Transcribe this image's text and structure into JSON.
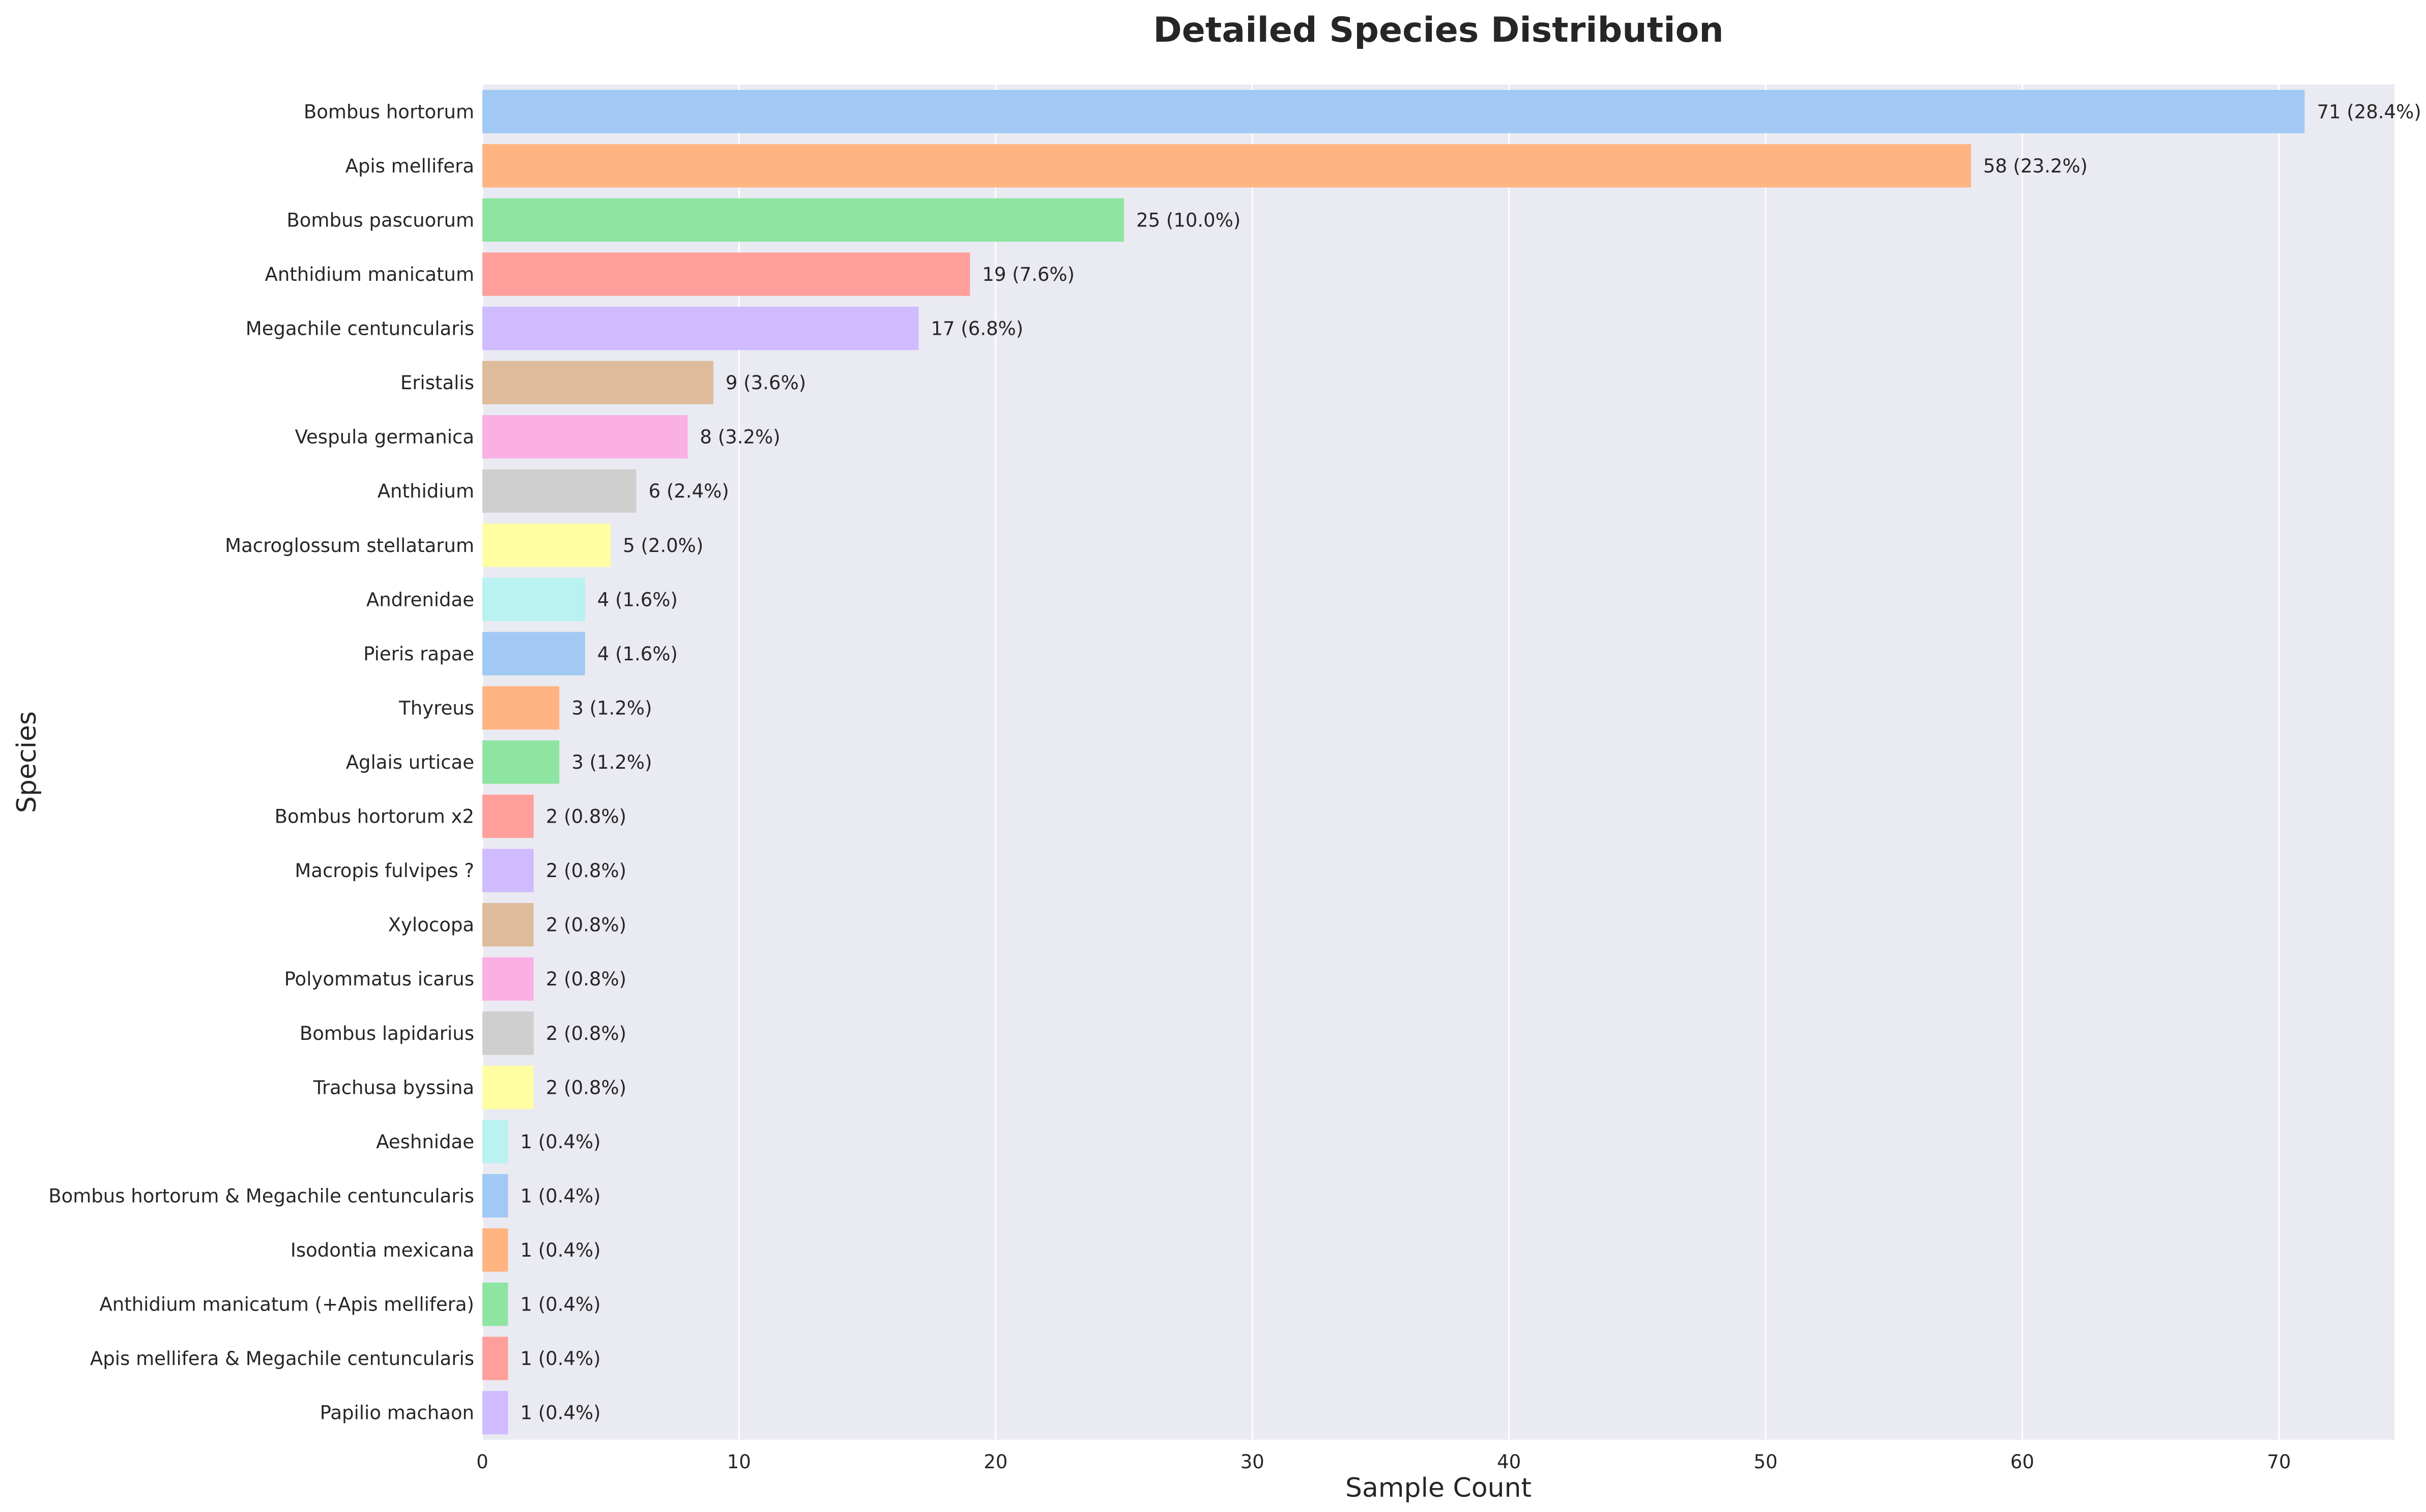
{
  "chart_data": {
    "type": "bar",
    "orientation": "horizontal",
    "title": "Detailed Species Distribution",
    "xlabel": "Sample Count",
    "ylabel": "Species",
    "xlim": [
      0,
      74.5
    ],
    "xticks": [
      0,
      10,
      20,
      30,
      40,
      50,
      60,
      70
    ],
    "grid": true,
    "categories": [
      "Bombus hortorum",
      "Apis mellifera",
      "Bombus pascuorum",
      "Anthidium manicatum",
      "Megachile centuncularis",
      "Eristalis",
      "Vespula germanica",
      "Anthidium",
      "Macroglossum stellatarum",
      "Andrenidae",
      "Pieris rapae",
      "Thyreus",
      "Aglais urticae",
      "Bombus hortorum x2",
      "Macropis fulvipes ?",
      "Xylocopa",
      "Polyommatus icarus",
      "Bombus lapidarius",
      "Trachusa byssina",
      "Aeshnidae",
      "Bombus hortorum & Megachile centuncularis",
      "Isodontia mexicana",
      "Anthidium manicatum (+Apis mellifera)",
      "Apis mellifera & Megachile centuncularis",
      "Papilio machaon"
    ],
    "values": [
      71,
      58,
      25,
      19,
      17,
      9,
      8,
      6,
      5,
      4,
      4,
      3,
      3,
      2,
      2,
      2,
      2,
      2,
      2,
      1,
      1,
      1,
      1,
      1,
      1
    ],
    "data_labels": [
      "71 (28.4%)",
      "58 (23.2%)",
      "25 (10.0%)",
      "19 (7.6%)",
      "17 (6.8%)",
      "9 (3.6%)",
      "8 (3.2%)",
      "6 (2.4%)",
      "5 (2.0%)",
      "4 (1.6%)",
      "4 (1.6%)",
      "3 (1.2%)",
      "3 (1.2%)",
      "2 (0.8%)",
      "2 (0.8%)",
      "2 (0.8%)",
      "2 (0.8%)",
      "2 (0.8%)",
      "2 (0.8%)",
      "1 (0.4%)",
      "1 (0.4%)",
      "1 (0.4%)",
      "1 (0.4%)",
      "1 (0.4%)",
      "1 (0.4%)"
    ],
    "colors": [
      "#a1c9f4",
      "#ffb482",
      "#8de5a1",
      "#ff9f9b",
      "#d0bbff",
      "#debb9b",
      "#fab0e4",
      "#cfcfcf",
      "#fffea3",
      "#b9f2f0"
    ],
    "background_color": "#eaeaf2"
  }
}
